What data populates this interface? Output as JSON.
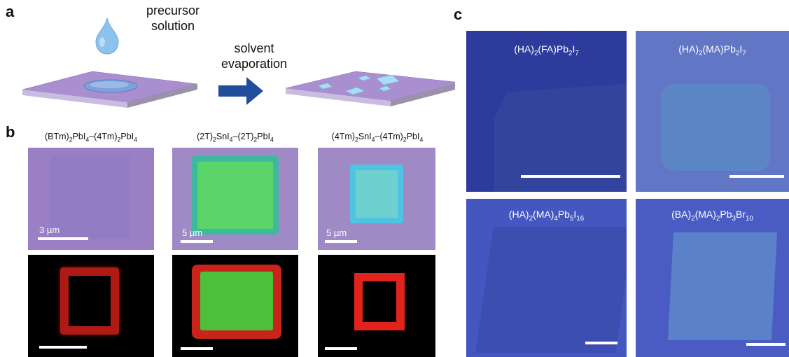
{
  "panel_a": {
    "letter": "a",
    "drop_label_1": "precursor",
    "drop_label_2": "solution",
    "arrow_label_1": "solvent",
    "arrow_label_2": "evaporation"
  },
  "panel_b": {
    "letter": "b",
    "columns": [
      {
        "caption": "(BTm)<sub>2</sub>PbI<sub>4</sub>–(4Tm)<sub>2</sub>PbI<sub>4</sub>",
        "scale": "3 µm"
      },
      {
        "caption": "(2T)<sub>2</sub>SnI<sub>4</sub>–(2T)<sub>2</sub>PbI<sub>4</sub>",
        "scale": "5 µm"
      },
      {
        "caption": "(4Tm)<sub>2</sub>SnI<sub>4</sub>–(4Tm)<sub>2</sub>PbI<sub>4</sub>",
        "scale": "5 µm"
      }
    ]
  },
  "panel_c": {
    "letter": "c",
    "images": [
      {
        "title": "(HA)<sub>2</sub>(FA)Pb<sub>2</sub>I<sub>7</sub>"
      },
      {
        "title": "(HA)<sub>2</sub>(MA)Pb<sub>2</sub>I<sub>7</sub>"
      },
      {
        "title": "(HA)<sub>2</sub>(MA)<sub>4</sub>Pb<sub>5</sub>I<sub>16</sub>"
      },
      {
        "title": "(BA)<sub>2</sub>(MA)<sub>2</sub>Pb<sub>3</sub>Br<sub>10</sub>"
      }
    ]
  },
  "colors": {
    "substrate": "#a98fd0",
    "ab_background": "#9a7fc4",
    "green": "#4fd36a",
    "cyan": "#58c7e0",
    "red": "#e0201c",
    "arrow": "#1f4f9a",
    "c_background": "#3d4fb5"
  }
}
